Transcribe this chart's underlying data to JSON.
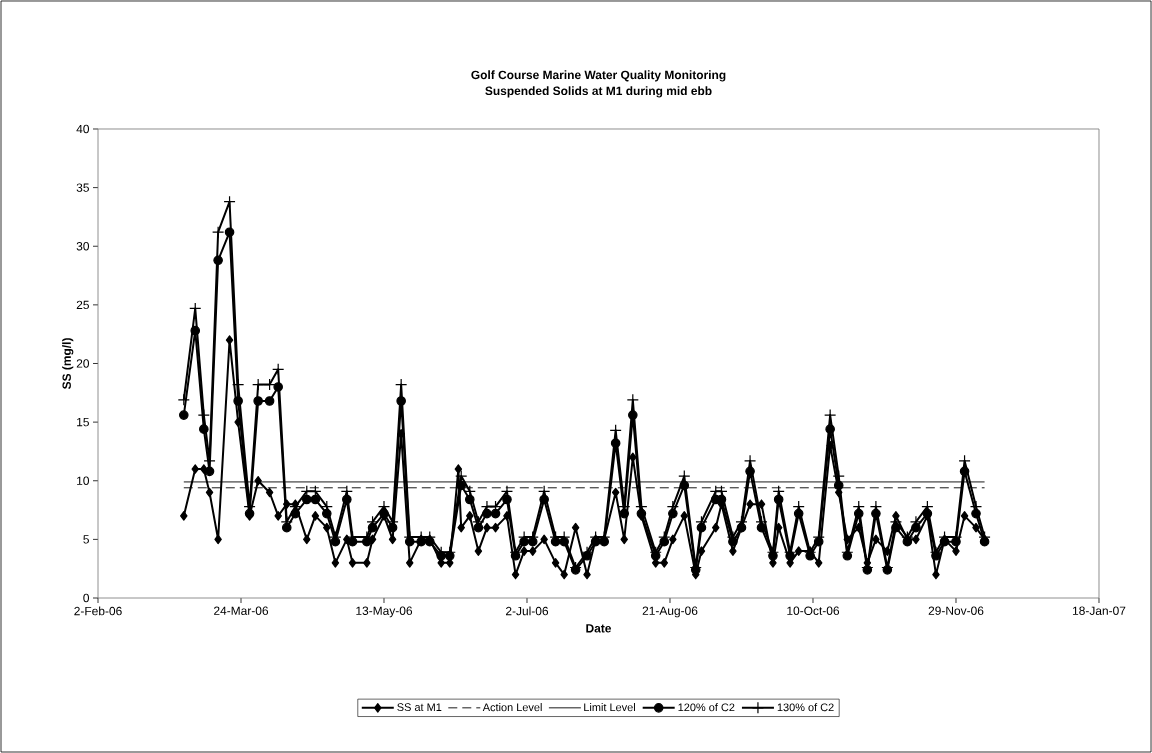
{
  "chart_data": {
    "type": "line",
    "title": "Golf Course Marine Water Quality Monitoring",
    "subtitle": "Suspended Solids at M1 during mid ebb",
    "xlabel": "Date",
    "ylabel": "SS (mg/l)",
    "xlim": [
      "2006-02-02",
      "2007-01-18"
    ],
    "xticks": [
      {
        "value": "2006-02-02",
        "label": "2-Feb-06"
      },
      {
        "value": "2006-03-24",
        "label": "24-Mar-06"
      },
      {
        "value": "2006-05-13",
        "label": "13-May-06"
      },
      {
        "value": "2006-07-02",
        "label": "2-Jul-06"
      },
      {
        "value": "2006-08-21",
        "label": "21-Aug-06"
      },
      {
        "value": "2006-10-10",
        "label": "10-Oct-06"
      },
      {
        "value": "2006-11-29",
        "label": "29-Nov-06"
      },
      {
        "value": "2007-01-18",
        "label": "18-Jan-07"
      }
    ],
    "ylim": [
      0,
      40
    ],
    "yticks": [
      0,
      5,
      10,
      15,
      20,
      25,
      30,
      35,
      40
    ],
    "legend": "bottom",
    "series": [
      {
        "name": "SS at M1",
        "color": "#000000",
        "marker": "diamond",
        "line_style": "solid",
        "x": [
          "2006-03-04",
          "2006-03-08",
          "2006-03-11",
          "2006-03-13",
          "2006-03-16",
          "2006-03-20",
          "2006-03-23",
          "2006-03-27",
          "2006-03-30",
          "2006-04-03",
          "2006-04-06",
          "2006-04-09",
          "2006-04-12",
          "2006-04-16",
          "2006-04-19",
          "2006-04-23",
          "2006-04-26",
          "2006-04-30",
          "2006-05-02",
          "2006-05-07",
          "2006-05-09",
          "2006-05-13",
          "2006-05-16",
          "2006-05-19",
          "2006-05-22",
          "2006-05-26",
          "2006-05-29",
          "2006-06-02",
          "2006-06-05",
          "2006-06-08",
          "2006-06-09",
          "2006-06-12",
          "2006-06-15",
          "2006-06-18",
          "2006-06-21",
          "2006-06-25",
          "2006-06-28",
          "2006-07-01",
          "2006-07-04",
          "2006-07-08",
          "2006-07-12",
          "2006-07-15",
          "2006-07-19",
          "2006-07-23",
          "2006-07-26",
          "2006-07-29",
          "2006-08-02",
          "2006-08-05",
          "2006-08-08",
          "2006-08-11",
          "2006-08-16",
          "2006-08-19",
          "2006-08-22",
          "2006-08-26",
          "2006-08-30",
          "2006-09-01",
          "2006-09-06",
          "2006-09-08",
          "2006-09-12",
          "2006-09-15",
          "2006-09-18",
          "2006-09-22",
          "2006-09-26",
          "2006-09-28",
          "2006-10-02",
          "2006-10-05",
          "2006-10-09",
          "2006-10-12",
          "2006-10-16",
          "2006-10-19",
          "2006-10-22",
          "2006-10-26",
          "2006-10-29",
          "2006-11-01",
          "2006-11-05",
          "2006-11-08",
          "2006-11-12",
          "2006-11-15",
          "2006-11-19",
          "2006-11-22",
          "2006-11-25",
          "2006-11-29",
          "2006-12-02",
          "2006-12-06",
          "2006-12-09"
        ],
        "values": [
          7,
          11,
          11,
          9,
          5,
          22,
          15,
          7,
          10,
          9,
          7,
          8,
          8,
          5,
          7,
          6,
          3,
          5,
          3,
          3,
          5,
          7,
          5,
          14,
          3,
          5,
          5,
          3,
          3,
          11,
          6,
          7,
          4,
          6,
          6,
          7,
          2,
          4,
          4,
          5,
          3,
          2,
          6,
          2,
          5,
          5,
          9,
          5,
          12,
          7,
          3,
          3,
          5,
          7,
          2,
          4,
          6,
          8,
          4,
          6,
          8,
          8,
          3,
          6,
          3,
          4,
          4,
          3,
          13,
          9,
          5,
          6,
          3,
          5,
          4,
          7,
          5,
          5,
          7,
          2,
          5,
          4,
          7,
          6,
          5
        ]
      },
      {
        "name": "Action Level",
        "color": "#000000",
        "marker": "none",
        "line_style": "dashed",
        "x": [
          "2006-03-04",
          "2006-12-09"
        ],
        "values": [
          9.4,
          9.4
        ]
      },
      {
        "name": "Limit Level",
        "color": "#000000",
        "marker": "none",
        "line_style": "solid",
        "x": [
          "2006-03-04",
          "2006-12-09"
        ],
        "values": [
          9.9,
          9.9
        ]
      },
      {
        "name": "120% of C2",
        "color": "#000000",
        "marker": "circle",
        "line_style": "solid",
        "x": [
          "2006-03-04",
          "2006-03-08",
          "2006-03-11",
          "2006-03-13",
          "2006-03-16",
          "2006-03-20",
          "2006-03-23",
          "2006-03-27",
          "2006-03-30",
          "2006-04-03",
          "2006-04-06",
          "2006-04-09",
          "2006-04-12",
          "2006-04-16",
          "2006-04-19",
          "2006-04-23",
          "2006-04-26",
          "2006-04-30",
          "2006-05-02",
          "2006-05-07",
          "2006-05-09",
          "2006-05-13",
          "2006-05-16",
          "2006-05-19",
          "2006-05-22",
          "2006-05-26",
          "2006-05-29",
          "2006-06-02",
          "2006-06-05",
          "2006-06-09",
          "2006-06-12",
          "2006-06-15",
          "2006-06-18",
          "2006-06-21",
          "2006-06-25",
          "2006-06-28",
          "2006-07-01",
          "2006-07-04",
          "2006-07-08",
          "2006-07-12",
          "2006-07-15",
          "2006-07-19",
          "2006-07-23",
          "2006-07-26",
          "2006-07-29",
          "2006-08-02",
          "2006-08-05",
          "2006-08-08",
          "2006-08-11",
          "2006-08-16",
          "2006-08-19",
          "2006-08-22",
          "2006-08-26",
          "2006-08-30",
          "2006-09-01",
          "2006-09-06",
          "2006-09-08",
          "2006-09-12",
          "2006-09-15",
          "2006-09-18",
          "2006-09-22",
          "2006-09-26",
          "2006-09-28",
          "2006-10-02",
          "2006-10-05",
          "2006-10-09",
          "2006-10-12",
          "2006-10-16",
          "2006-10-19",
          "2006-10-22",
          "2006-10-26",
          "2006-10-29",
          "2006-11-01",
          "2006-11-05",
          "2006-11-08",
          "2006-11-12",
          "2006-11-15",
          "2006-11-19",
          "2006-11-22",
          "2006-11-25",
          "2006-11-29",
          "2006-12-02",
          "2006-12-06",
          "2006-12-09"
        ],
        "values": [
          15.6,
          22.8,
          14.4,
          10.8,
          28.8,
          31.2,
          16.8,
          7.2,
          16.8,
          16.8,
          18,
          6,
          7.2,
          8.4,
          8.4,
          7.2,
          4.8,
          8.4,
          4.8,
          4.8,
          6,
          7.2,
          6,
          16.8,
          4.8,
          4.8,
          4.8,
          3.6,
          3.6,
          9.6,
          8.4,
          6,
          7.2,
          7.2,
          8.4,
          3.6,
          4.8,
          4.8,
          8.4,
          4.8,
          4.8,
          2.4,
          3.6,
          4.8,
          4.8,
          13.2,
          7.2,
          15.6,
          7.2,
          3.6,
          4.8,
          7.2,
          9.6,
          2.4,
          6,
          8.4,
          8.4,
          4.8,
          6,
          10.8,
          6,
          3.6,
          8.4,
          3.6,
          7.2,
          3.6,
          4.8,
          14.4,
          9.6,
          3.6,
          7.2,
          2.4,
          7.2,
          2.4,
          6,
          4.8,
          6,
          7.2,
          3.6,
          4.8,
          4.8,
          10.8,
          7.2,
          4.8
        ]
      },
      {
        "name": "130% of C2",
        "color": "#000000",
        "marker": "cross",
        "line_style": "solid",
        "x": [
          "2006-03-04",
          "2006-03-08",
          "2006-03-11",
          "2006-03-13",
          "2006-03-16",
          "2006-03-20",
          "2006-03-23",
          "2006-03-27",
          "2006-03-30",
          "2006-04-03",
          "2006-04-06",
          "2006-04-09",
          "2006-04-12",
          "2006-04-16",
          "2006-04-19",
          "2006-04-23",
          "2006-04-26",
          "2006-04-30",
          "2006-05-02",
          "2006-05-07",
          "2006-05-09",
          "2006-05-13",
          "2006-05-16",
          "2006-05-19",
          "2006-05-22",
          "2006-05-26",
          "2006-05-29",
          "2006-06-02",
          "2006-06-05",
          "2006-06-09",
          "2006-06-12",
          "2006-06-15",
          "2006-06-18",
          "2006-06-21",
          "2006-06-25",
          "2006-06-28",
          "2006-07-01",
          "2006-07-04",
          "2006-07-08",
          "2006-07-12",
          "2006-07-15",
          "2006-07-19",
          "2006-07-23",
          "2006-07-26",
          "2006-07-29",
          "2006-08-02",
          "2006-08-05",
          "2006-08-08",
          "2006-08-11",
          "2006-08-16",
          "2006-08-19",
          "2006-08-22",
          "2006-08-26",
          "2006-08-30",
          "2006-09-01",
          "2006-09-06",
          "2006-09-08",
          "2006-09-12",
          "2006-09-15",
          "2006-09-18",
          "2006-09-22",
          "2006-09-26",
          "2006-09-28",
          "2006-10-02",
          "2006-10-05",
          "2006-10-09",
          "2006-10-12",
          "2006-10-16",
          "2006-10-19",
          "2006-10-22",
          "2006-10-26",
          "2006-10-29",
          "2006-11-01",
          "2006-11-05",
          "2006-11-08",
          "2006-11-12",
          "2006-11-15",
          "2006-11-19",
          "2006-11-22",
          "2006-11-25",
          "2006-11-29",
          "2006-12-02",
          "2006-12-06",
          "2006-12-09"
        ],
        "values": [
          16.9,
          24.7,
          15.6,
          11.7,
          31.2,
          33.8,
          18.2,
          7.8,
          18.2,
          18.2,
          19.5,
          6.5,
          7.8,
          9.1,
          9.1,
          7.8,
          5.2,
          9.1,
          5.2,
          5.2,
          6.5,
          7.8,
          6.5,
          18.2,
          5.2,
          5.2,
          5.2,
          3.9,
          3.9,
          10.4,
          9.1,
          6.5,
          7.8,
          7.8,
          9.1,
          3.9,
          5.2,
          5.2,
          9.1,
          5.2,
          5.2,
          2.6,
          3.9,
          5.2,
          5.2,
          14.3,
          7.8,
          16.9,
          7.8,
          3.9,
          5.2,
          7.8,
          10.4,
          2.6,
          6.5,
          9.1,
          9.1,
          5.2,
          6.5,
          11.7,
          6.5,
          3.9,
          9.1,
          3.9,
          7.8,
          3.9,
          5.2,
          15.6,
          10.4,
          3.9,
          7.8,
          2.6,
          7.8,
          2.6,
          6.5,
          5.2,
          6.5,
          7.8,
          3.9,
          5.2,
          5.2,
          11.7,
          7.8,
          5.2
        ]
      }
    ]
  }
}
